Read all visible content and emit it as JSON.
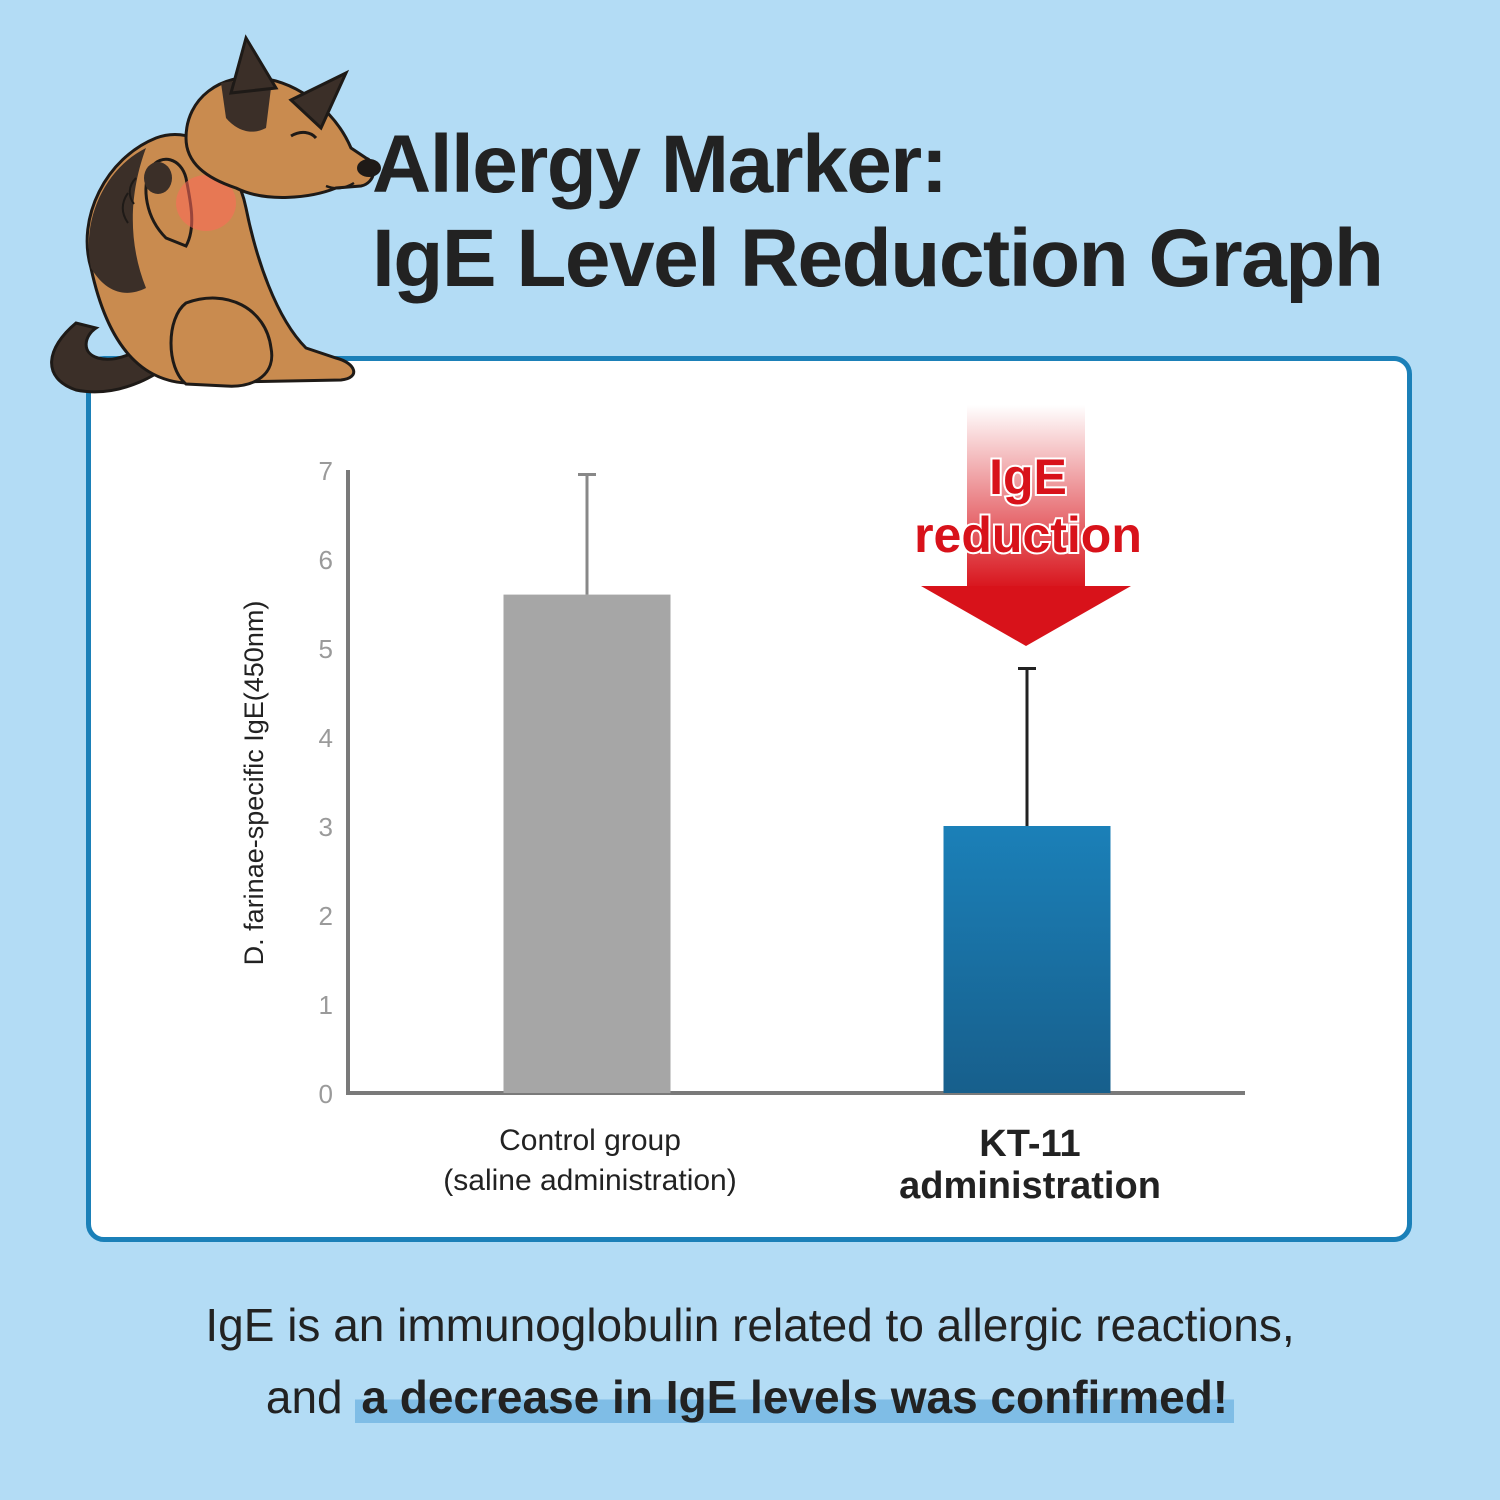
{
  "title": {
    "line1": "Allergy Marker:",
    "line2": "IgE Level Reduction Graph"
  },
  "chart_data": {
    "type": "bar",
    "ylabel": "D. farinae-specific IgE(450nm)",
    "ylim": [
      0,
      7
    ],
    "yticks": [
      "0",
      "1",
      "2",
      "3",
      "4",
      "5",
      "6",
      "7"
    ],
    "grid": false,
    "bars": [
      {
        "label_line1": "Control group",
        "label_line2": "(saline administration)",
        "value": 5.6,
        "error": 1.35,
        "color": "#a6a6a6"
      },
      {
        "label_line1": "KT-11",
        "label_line2": "administration",
        "value": 3.0,
        "error": 1.77,
        "color": "#1a77a8"
      }
    ],
    "annotation": {
      "line1": "IgE",
      "line2": "reduction",
      "color": "#d8121a"
    }
  },
  "caption": {
    "line1": "IgE is an immunoglobulin related to allergic reactions,",
    "line2_plain": "and",
    "line2_bold": "a decrease in IgE levels was confirmed!"
  }
}
